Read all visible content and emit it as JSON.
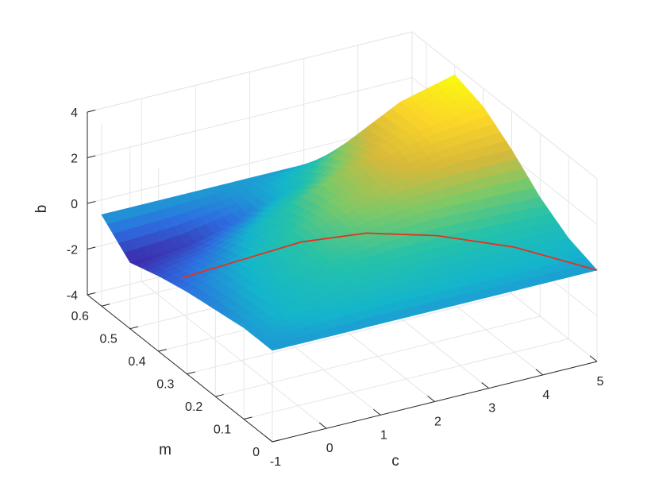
{
  "chart_data": {
    "type": "surface",
    "title": "",
    "xlabel": "c",
    "ylabel": "m",
    "zlabel": "b",
    "xlim": [
      -1,
      5
    ],
    "ylim": [
      0,
      0.65
    ],
    "zlim": [
      -4,
      4
    ],
    "x_ticks": [
      "-1",
      "0",
      "1",
      "2",
      "3",
      "4",
      "5"
    ],
    "y_ticks": [
      "0",
      "0.1",
      "0.2",
      "0.3",
      "0.4",
      "0.5",
      "0.6"
    ],
    "z_ticks": [
      "-4",
      "-2",
      "0",
      "2",
      "4"
    ],
    "grid": true,
    "colormap": [
      "#3e26a8",
      "#2d6ee0",
      "#14b5cc",
      "#26c2a8",
      "#7cc968",
      "#d7b93a",
      "#fbd529",
      "#f9fb0e"
    ],
    "series": [
      {
        "kind": "surface",
        "c": [
          -1,
          0,
          1,
          2,
          3,
          4,
          5
        ],
        "m": [
          0,
          0.1,
          0.2,
          0.3,
          0.4,
          0.5,
          0.6
        ],
        "b": [
          [
            0.0,
            0.0,
            0.0,
            0.0,
            0.0,
            0.0,
            0.0
          ],
          [
            0.0,
            0.4,
            0.6,
            0.6,
            0.5,
            0.5,
            0.4
          ],
          [
            -0.2,
            0.4,
            1.0,
            1.3,
            1.4,
            1.3,
            1.2
          ],
          [
            -0.4,
            0.2,
            1.0,
            1.7,
            2.1,
            2.3,
            2.3
          ],
          [
            -0.7,
            -0.3,
            0.5,
            1.5,
            2.3,
            2.9,
            3.2
          ],
          [
            -1.1,
            -0.9,
            -0.4,
            0.4,
            1.8,
            3.0,
            3.6
          ],
          [
            0.0,
            0.0,
            0.0,
            0.0,
            0.0,
            0.0,
            0.0
          ]
        ]
      },
      {
        "kind": "curve",
        "color": "#e8301a",
        "c": [
          -1,
          0,
          1,
          2,
          3,
          4,
          5
        ],
        "m": [
          0.32,
          0.3,
          0.28,
          0.24,
          0.18,
          0.1,
          0.0
        ],
        "b": [
          0.0,
          0.4,
          0.8,
          1.0,
          0.9,
          0.6,
          0.0
        ]
      }
    ]
  }
}
